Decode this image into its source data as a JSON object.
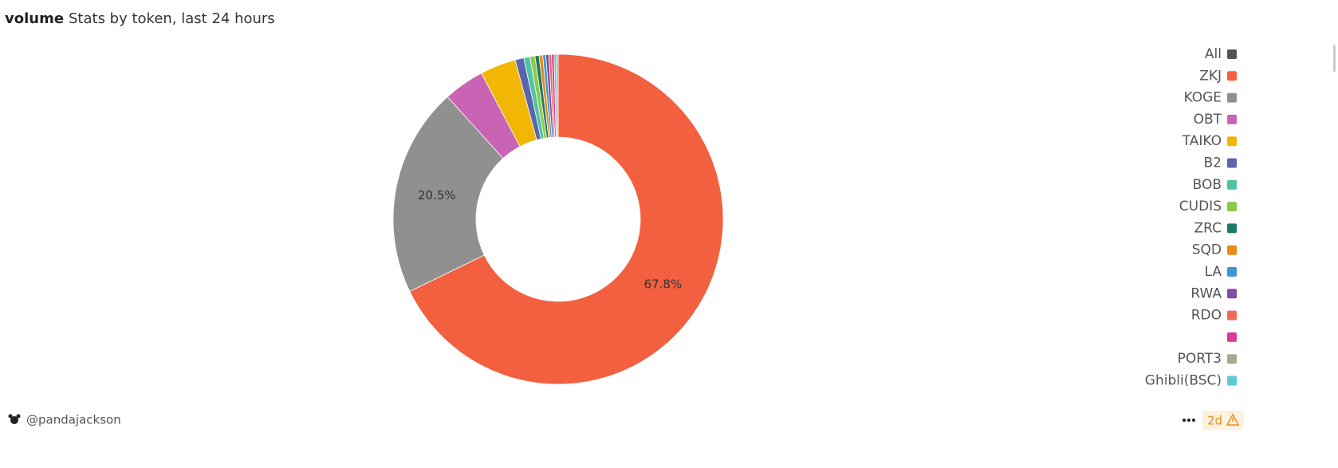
{
  "header": {
    "title": "volume",
    "subtitle": "Stats by token, last 24 hours"
  },
  "chart_data": {
    "type": "pie",
    "donut": true,
    "legend_position": "right",
    "legend_all": "All",
    "legend_all_color": "#555555",
    "categories": [
      "ZKJ",
      "KOGE",
      "OBT",
      "TAIKO",
      "B2",
      "BOB",
      "CUDIS",
      "ZRC",
      "SQD",
      "LA",
      "RWA",
      "RDO",
      null,
      "PORT3",
      "Ghibli(BSC)"
    ],
    "values": [
      67.8,
      20.5,
      4.0,
      3.5,
      0.85,
      0.6,
      0.5,
      0.4,
      0.35,
      0.3,
      0.3,
      0.25,
      0.25,
      0.2,
      0.2
    ],
    "value_labels": [
      "67.8%",
      "20.5%",
      null,
      null,
      null,
      null,
      null,
      null,
      null,
      null,
      null,
      null,
      null,
      null,
      null
    ],
    "colors": [
      "#f2603f",
      "#909090",
      "#c964b5",
      "#f2b705",
      "#5a65ad",
      "#4fc4a5",
      "#8fca4b",
      "#1d7a66",
      "#e88a1a",
      "#3a96d4",
      "#7d4fa5",
      "#ef6958",
      "#d63d96",
      "#a7a990",
      "#5ec9d2"
    ]
  },
  "footer": {
    "author": "@pandajackson",
    "age": "2d"
  }
}
